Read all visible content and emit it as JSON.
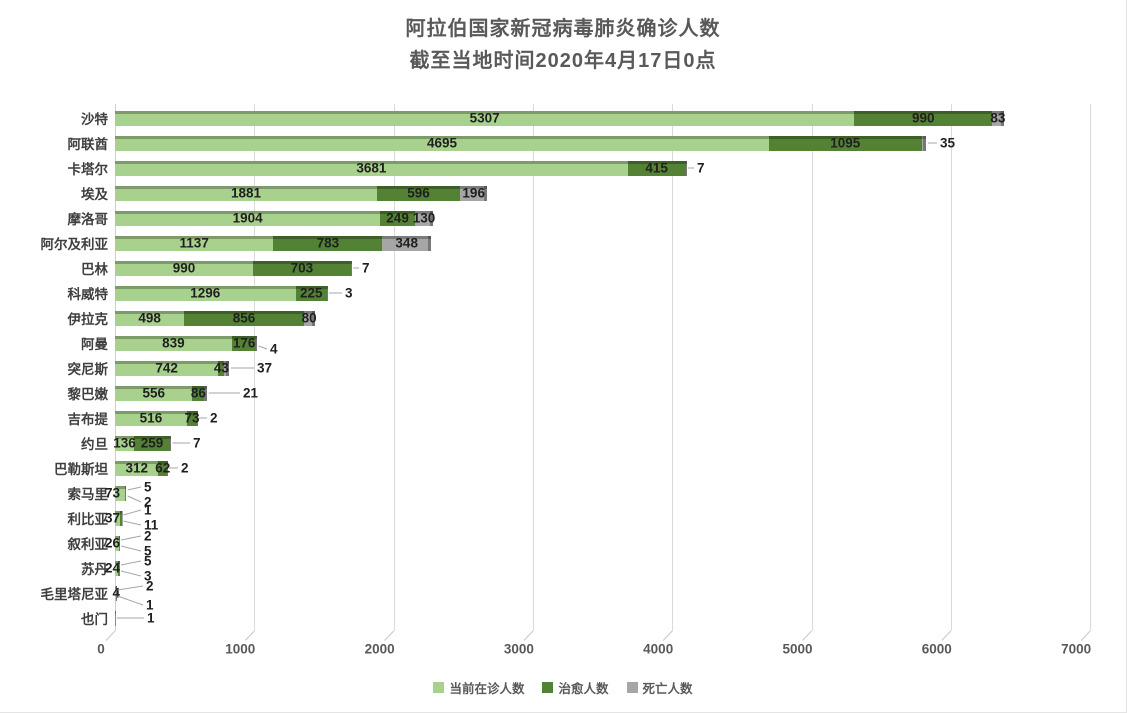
{
  "chart_data": {
    "type": "bar",
    "variant": "horizontal-stacked-3d",
    "title_lines": [
      "阿拉伯国家新冠病毒肺炎确诊人数",
      "截至当地时间2020年4月17日0点"
    ],
    "categories": [
      "沙特",
      "阿联酋",
      "卡塔尔",
      "埃及",
      "摩洛哥",
      "阿尔及利亚",
      "巴林",
      "科威特",
      "伊拉克",
      "阿曼",
      "突尼斯",
      "黎巴嫩",
      "吉布提",
      "约旦",
      "巴勒斯坦",
      "索马里",
      "利比亚",
      "叙利亚",
      "苏丹",
      "毛里塔尼亚",
      "也门"
    ],
    "series": [
      {
        "name": "当前在诊人数",
        "color": "#A9D18E",
        "values": [
          5307,
          4695,
          3681,
          1881,
          1904,
          1137,
          990,
          1296,
          498,
          839,
          742,
          556,
          516,
          136,
          312,
          73,
          37,
          26,
          24,
          4,
          1
        ]
      },
      {
        "name": "治愈人数",
        "color": "#548235",
        "values": [
          990,
          1095,
          415,
          596,
          249,
          783,
          703,
          225,
          856,
          176,
          43,
          86,
          73,
          259,
          62,
          2,
          11,
          5,
          3,
          2,
          0
        ]
      },
      {
        "name": "死亡人数",
        "color": "#A6A6A6",
        "values": [
          83,
          35,
          7,
          196,
          130,
          348,
          7,
          3,
          80,
          4,
          37,
          21,
          2,
          7,
          2,
          5,
          1,
          2,
          5,
          1,
          0
        ]
      }
    ],
    "xlim": [
      0,
      7000
    ],
    "xticks": [
      "0",
      "1000",
      "2000",
      "3000",
      "4000",
      "5000",
      "6000",
      "7000"
    ],
    "grid": true,
    "legend_position": "bottom",
    "label_layout": [
      {
        "cur": "in",
        "cured": "in",
        "death": "in"
      },
      {
        "cur": "in",
        "cured": "in",
        "death": "callout:940:0"
      },
      {
        "cur": "in",
        "cured": "in",
        "death": "callout:697:0"
      },
      {
        "cur": "in",
        "cured": "in",
        "death": "in"
      },
      {
        "cur": "in",
        "cured": "in",
        "death": "in"
      },
      {
        "cur": "in",
        "cured": "in",
        "death": "in"
      },
      {
        "cur": "in",
        "cured": "in",
        "death": "callout:362:0"
      },
      {
        "cur": "in",
        "cured": "in",
        "death": "callout:345:0"
      },
      {
        "cur": "in",
        "cured": "in",
        "death": "in"
      },
      {
        "cur": "in",
        "cured": "in",
        "death": "callout:270:6"
      },
      {
        "cur": "in",
        "cured": "in",
        "death": "callout:257:0"
      },
      {
        "cur": "in",
        "cured": "in",
        "death": "callout:243:0"
      },
      {
        "cur": "in",
        "cured": "in",
        "death": "callout:210:0"
      },
      {
        "cur": "in",
        "cured": "in",
        "death": "callout:193:0"
      },
      {
        "cur": "in",
        "cured": "in",
        "death": "callout:181:0"
      },
      {
        "cur": "left",
        "cured": "callout:144:9",
        "death": "callout:144:-6"
      },
      {
        "cur": "left",
        "cured": "callout:144:7",
        "death": "callout:144:-8"
      },
      {
        "cur": "left",
        "cured": "callout:144:8",
        "death": "callout:144:-7"
      },
      {
        "cur": "left",
        "cured": "callout:144:8",
        "death": "callout:144:-7"
      },
      {
        "cur": "left",
        "cured": "callout:146:-7",
        "death": "callout:146:12"
      },
      {
        "cur": "callout:147:0",
        "cured": "none",
        "death": "none"
      }
    ]
  },
  "colors": {
    "current": "#A9D18E",
    "cured": "#548235",
    "death": "#A6A6A6",
    "title_text": "#595959",
    "axis_text": "#595959",
    "value_text": "#1f1f1f",
    "gridline": "#DADADA",
    "leader_line": "#A6A6A6"
  }
}
